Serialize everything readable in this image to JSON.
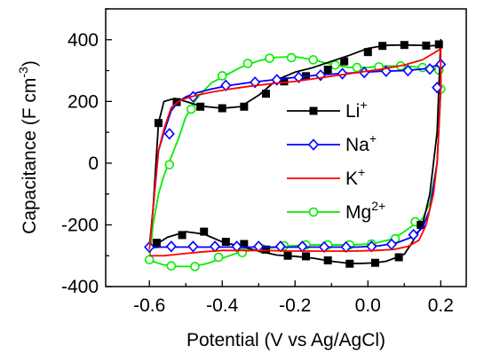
{
  "chart_data": {
    "type": "line",
    "xlabel": "Potential (V vs Ag/AgCl)",
    "ylabel_main": "Capacitance (F cm",
    "ylabel_sup": "-3",
    "ylabel_close": ")",
    "xlim": [
      -0.72,
      0.27
    ],
    "ylim": [
      -400,
      500
    ],
    "xticks": [
      -0.6,
      -0.5,
      -0.4,
      -0.3,
      -0.2,
      -0.1,
      0.0,
      0.1,
      0.2
    ],
    "xticklabels": [
      "-0.6",
      "",
      "-0.4",
      "",
      "-0.2",
      "",
      "0.0",
      "",
      "0.2"
    ],
    "yticks": [
      -400,
      -300,
      -200,
      -100,
      0,
      100,
      200,
      300,
      400,
      500
    ],
    "yticklabels": [
      "-400",
      "",
      "-200",
      "",
      "0",
      "",
      "200",
      "",
      "400",
      ""
    ],
    "legend_position": "right",
    "series": [
      {
        "name": "Li",
        "sup": "+",
        "color": "#000000",
        "marker": "square",
        "x": [
          -0.6,
          -0.59,
          -0.575,
          -0.56,
          -0.53,
          -0.5,
          -0.46,
          -0.4,
          -0.35,
          -0.3,
          -0.25,
          -0.2,
          -0.15,
          -0.1,
          -0.05,
          0.0,
          0.05,
          0.1,
          0.14,
          0.17,
          0.2,
          0.2,
          0.19,
          0.17,
          0.15,
          0.12,
          0.1,
          0.08,
          0.05,
          0.02,
          -0.02,
          -0.05,
          -0.1,
          -0.15,
          -0.2,
          -0.25,
          -0.3,
          -0.35,
          -0.4,
          -0.45,
          -0.5,
          -0.55,
          -0.58,
          -0.6
        ],
        "y": [
          -270,
          -150,
          130,
          200,
          210,
          200,
          185,
          178,
          183,
          220,
          270,
          295,
          310,
          330,
          350,
          372,
          382,
          383,
          382,
          380,
          383,
          400,
          100,
          -100,
          -200,
          -260,
          -295,
          -305,
          -318,
          -323,
          -325,
          -325,
          -318,
          -308,
          -302,
          -298,
          -285,
          -270,
          -255,
          -230,
          -222,
          -240,
          -262,
          -270
        ],
        "markers": [
          [
            -0.575,
            130
          ],
          [
            -0.525,
            198
          ],
          [
            -0.46,
            183
          ],
          [
            -0.4,
            178
          ],
          [
            -0.34,
            183
          ],
          [
            -0.28,
            225
          ],
          [
            -0.23,
            265
          ],
          [
            -0.17,
            282
          ],
          [
            -0.11,
            303
          ],
          [
            -0.065,
            330
          ],
          [
            0.0,
            360
          ],
          [
            0.04,
            380
          ],
          [
            0.1,
            383
          ],
          [
            0.16,
            381
          ],
          [
            0.195,
            385
          ],
          [
            0.145,
            -200
          ],
          [
            0.085,
            -305
          ],
          [
            0.02,
            -323
          ],
          [
            -0.05,
            -326
          ],
          [
            -0.11,
            -315
          ],
          [
            -0.17,
            -302
          ],
          [
            -0.22,
            -300
          ],
          [
            -0.28,
            -280
          ],
          [
            -0.34,
            -262
          ],
          [
            -0.39,
            -255
          ],
          [
            -0.45,
            -222
          ],
          [
            -0.51,
            -233
          ],
          [
            -0.58,
            -258
          ]
        ]
      },
      {
        "name": "Na",
        "sup": "+",
        "color": "#0000ff",
        "marker": "diamond",
        "x": [
          -0.6,
          -0.59,
          -0.575,
          -0.56,
          -0.54,
          -0.52,
          -0.5,
          -0.47,
          -0.43,
          -0.38,
          -0.32,
          -0.26,
          -0.2,
          -0.14,
          -0.08,
          -0.02,
          0.04,
          0.1,
          0.15,
          0.2,
          0.2,
          0.19,
          0.17,
          0.15,
          0.12,
          0.08,
          0.03,
          -0.03,
          -0.09,
          -0.15,
          -0.21,
          -0.27,
          -0.33,
          -0.39,
          -0.45,
          -0.51,
          -0.57,
          -0.6
        ],
        "y": [
          -275,
          -150,
          40,
          100,
          170,
          200,
          215,
          228,
          240,
          252,
          262,
          270,
          278,
          285,
          290,
          294,
          298,
          300,
          305,
          320,
          240,
          0,
          -150,
          -210,
          -240,
          -258,
          -268,
          -272,
          -272,
          -272,
          -272,
          -272,
          -272,
          -272,
          -272,
          -272,
          -272,
          -275
        ],
        "markers": [
          [
            -0.545,
            95
          ],
          [
            -0.48,
            215
          ],
          [
            -0.39,
            252
          ],
          [
            -0.31,
            262
          ],
          [
            -0.25,
            270
          ],
          [
            -0.19,
            278
          ],
          [
            -0.13,
            285
          ],
          [
            -0.07,
            290
          ],
          [
            -0.01,
            294
          ],
          [
            0.05,
            298
          ],
          [
            0.11,
            300
          ],
          [
            0.17,
            305
          ],
          [
            0.2,
            320
          ],
          [
            0.19,
            245
          ],
          [
            0.125,
            -232
          ],
          [
            0.065,
            -263
          ],
          [
            0.01,
            -270
          ],
          [
            -0.06,
            -272
          ],
          [
            -0.12,
            -272
          ],
          [
            -0.18,
            -270
          ],
          [
            -0.24,
            -270
          ],
          [
            -0.3,
            -270
          ],
          [
            -0.36,
            -270
          ],
          [
            -0.42,
            -270
          ],
          [
            -0.48,
            -270
          ],
          [
            -0.54,
            -270
          ],
          [
            -0.6,
            -272
          ]
        ]
      },
      {
        "name": "K",
        "sup": "+",
        "color": "#ff0000",
        "marker": "none",
        "x": [
          -0.6,
          -0.59,
          -0.575,
          -0.56,
          -0.54,
          -0.52,
          -0.5,
          -0.47,
          -0.43,
          -0.38,
          -0.32,
          -0.26,
          -0.2,
          -0.14,
          -0.08,
          -0.02,
          0.04,
          0.1,
          0.15,
          0.2,
          0.2,
          0.19,
          0.18,
          0.16,
          0.14,
          0.11,
          0.07,
          0.02,
          -0.04,
          -0.1,
          -0.16,
          -0.22,
          -0.28,
          -0.34,
          -0.4,
          -0.46,
          -0.52,
          -0.56,
          -0.6
        ],
        "y": [
          -280,
          -150,
          40,
          110,
          180,
          200,
          210,
          220,
          230,
          240,
          250,
          258,
          265,
          275,
          285,
          295,
          305,
          318,
          335,
          370,
          240,
          0,
          -100,
          -200,
          -250,
          -270,
          -280,
          -283,
          -285,
          -285,
          -285,
          -285,
          -283,
          -283,
          -283,
          -288,
          -295,
          -300,
          -300
        ]
      },
      {
        "name": "Mg",
        "sup": "2+",
        "color": "#00ee00",
        "marker": "circle",
        "x": [
          -0.6,
          -0.59,
          -0.575,
          -0.56,
          -0.54,
          -0.52,
          -0.5,
          -0.47,
          -0.43,
          -0.39,
          -0.35,
          -0.3,
          -0.25,
          -0.2,
          -0.15,
          -0.1,
          -0.05,
          0.0,
          0.05,
          0.1,
          0.15,
          0.18,
          0.2,
          0.2,
          0.19,
          0.17,
          0.15,
          0.12,
          0.09,
          0.06,
          0.01,
          -0.05,
          -0.11,
          -0.17,
          -0.23,
          -0.29,
          -0.35,
          -0.4,
          -0.44,
          -0.48,
          -0.52,
          -0.56,
          -0.6
        ],
        "y": [
          -315,
          -200,
          -100,
          -40,
          20,
          80,
          150,
          210,
          260,
          285,
          310,
          332,
          343,
          345,
          335,
          320,
          310,
          310,
          315,
          315,
          310,
          305,
          300,
          240,
          0,
          -130,
          -180,
          -205,
          -230,
          -248,
          -262,
          -265,
          -265,
          -265,
          -270,
          -278,
          -288,
          -308,
          -325,
          -335,
          -335,
          -330,
          -315
        ],
        "markers": [
          [
            -0.545,
            -5
          ],
          [
            -0.485,
            175
          ],
          [
            -0.4,
            283
          ],
          [
            -0.33,
            323
          ],
          [
            -0.27,
            340
          ],
          [
            -0.21,
            342
          ],
          [
            -0.15,
            335
          ],
          [
            -0.09,
            318
          ],
          [
            -0.03,
            310
          ],
          [
            0.03,
            312
          ],
          [
            0.09,
            315
          ],
          [
            0.15,
            310
          ],
          [
            0.195,
            302
          ],
          [
            0.2,
            240
          ],
          [
            0.13,
            -190
          ],
          [
            0.075,
            -245
          ],
          [
            0.01,
            -262
          ],
          [
            -0.05,
            -265
          ],
          [
            -0.11,
            -265
          ],
          [
            -0.17,
            -265
          ],
          [
            -0.23,
            -268
          ],
          [
            -0.29,
            -278
          ],
          [
            -0.345,
            -290
          ],
          [
            -0.41,
            -305
          ],
          [
            -0.475,
            -335
          ],
          [
            -0.54,
            -333
          ],
          [
            -0.6,
            -313
          ]
        ]
      }
    ]
  }
}
